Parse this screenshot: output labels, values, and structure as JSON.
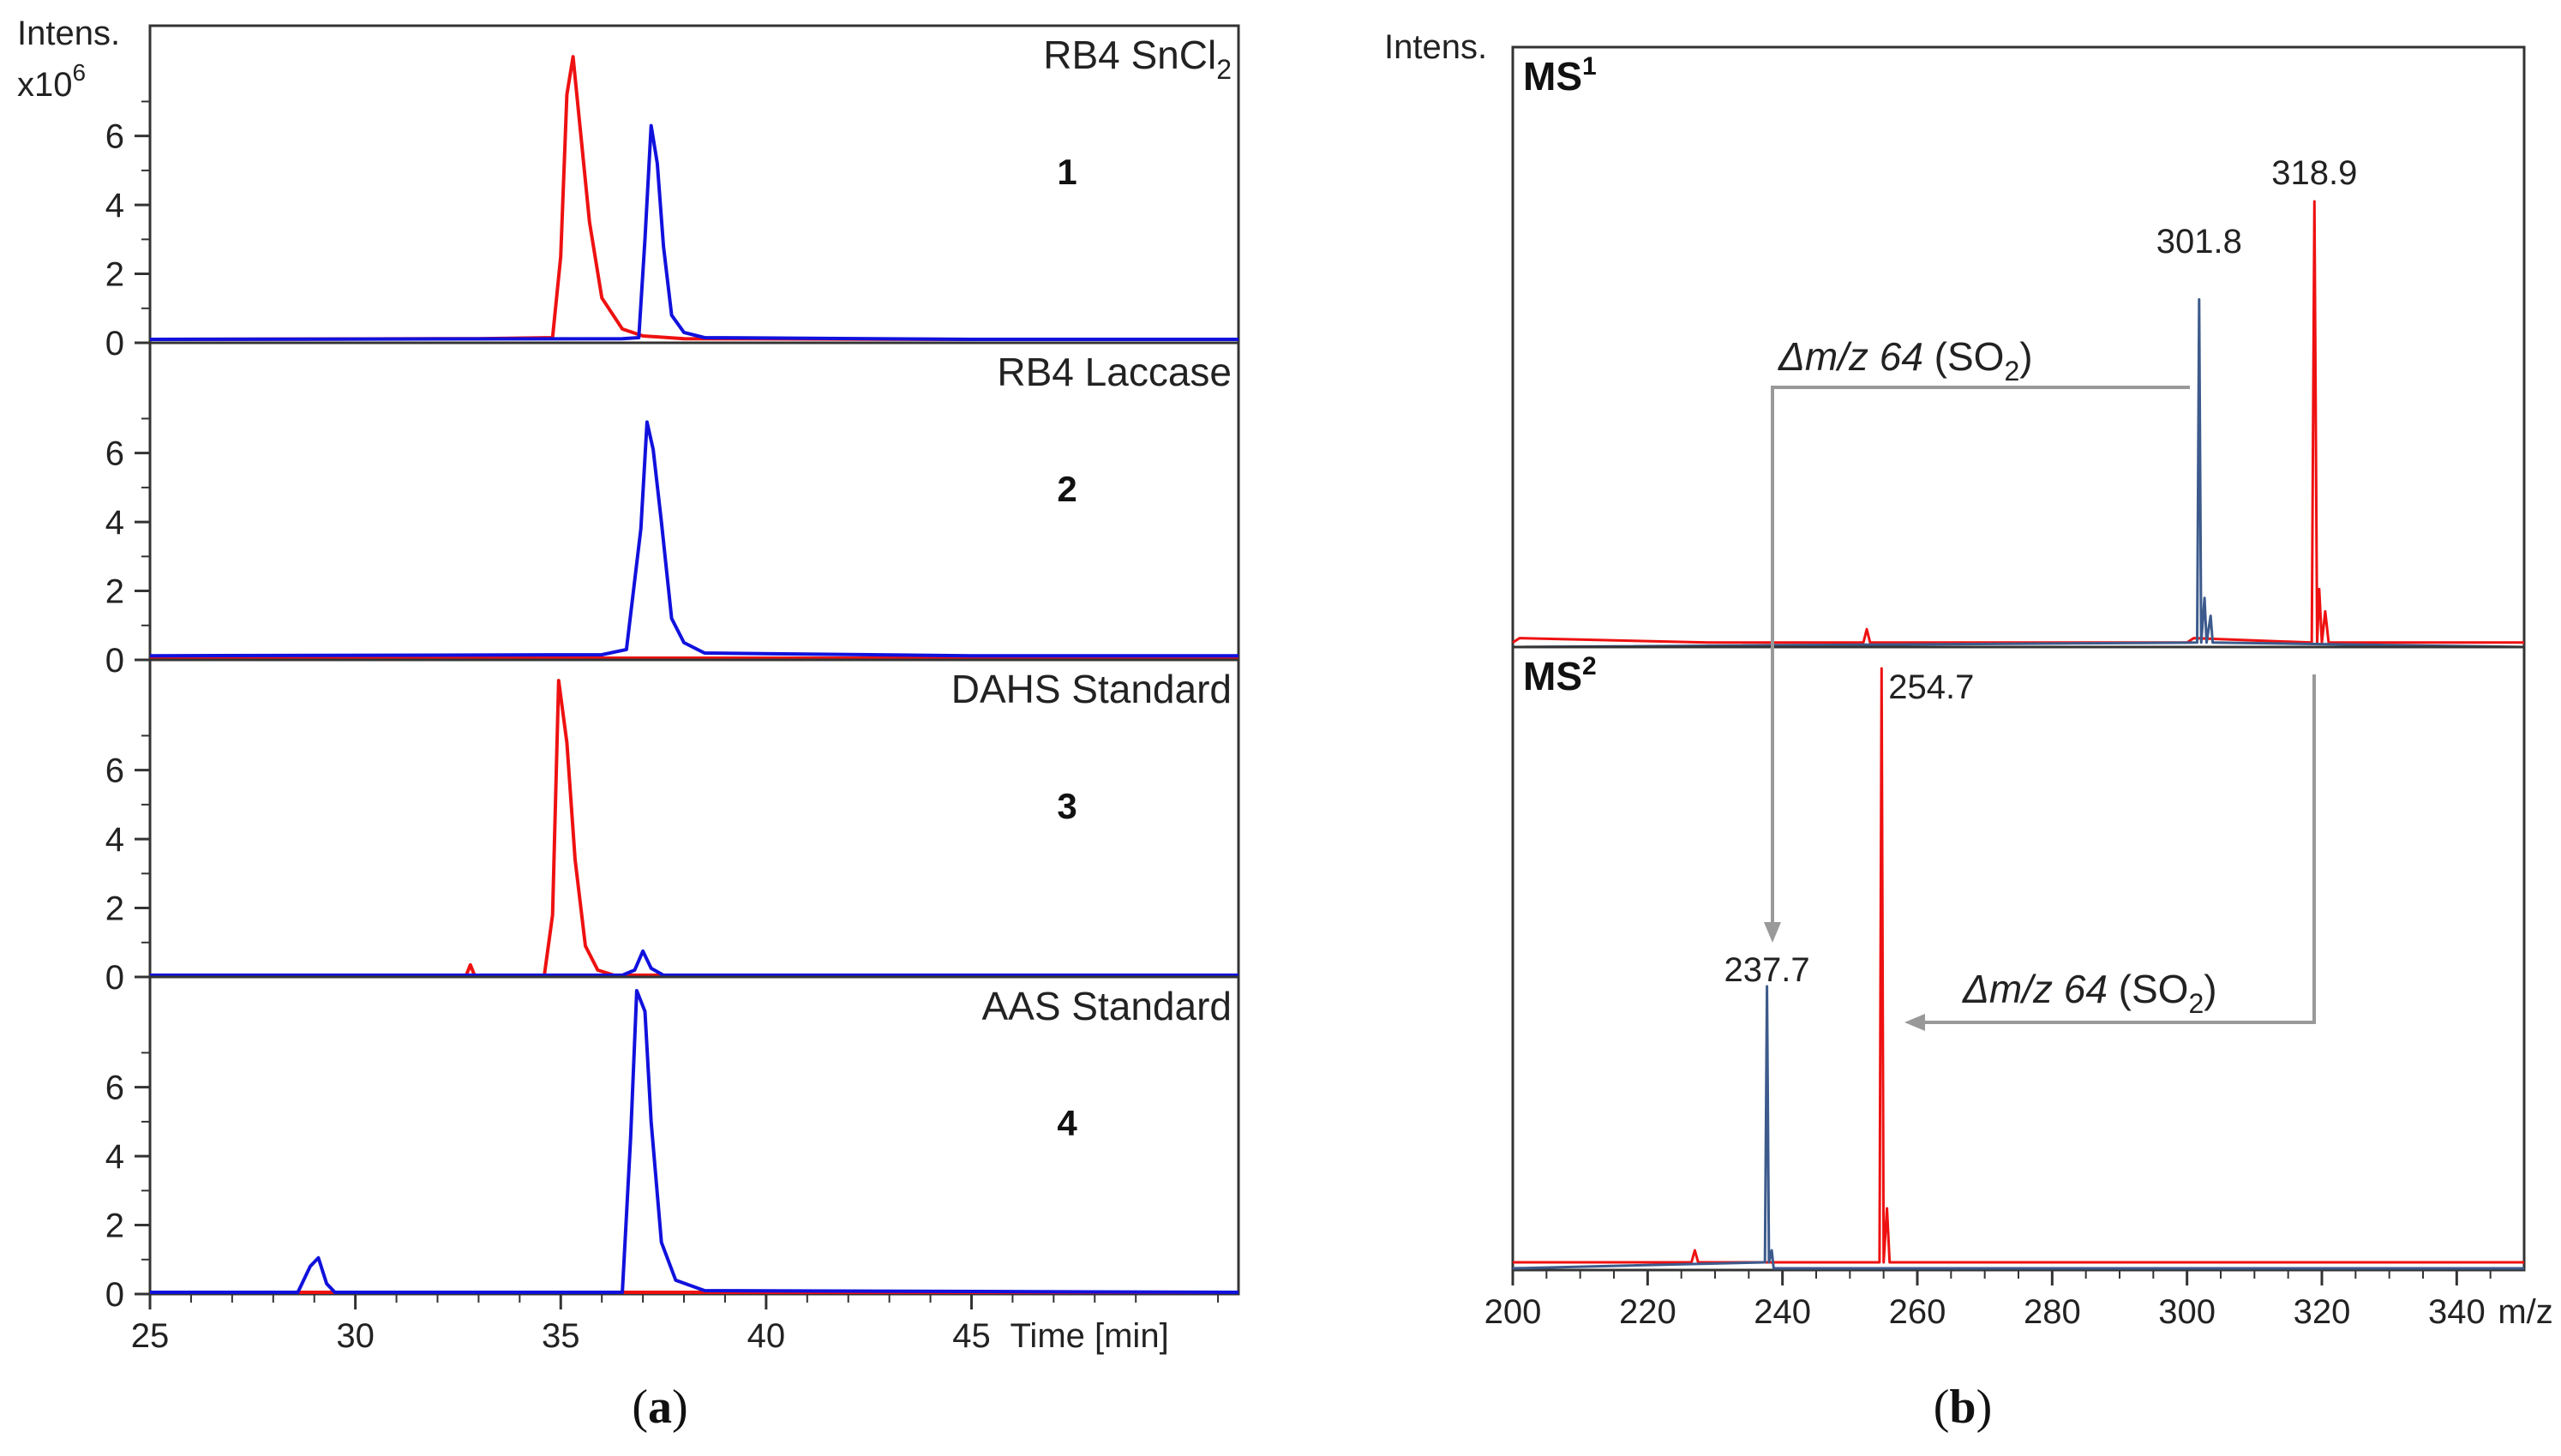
{
  "chart_data": [
    {
      "id": "a",
      "type": "line",
      "panel_caption": "a",
      "y_axis_label": "Intens.",
      "y_axis_multiplier_base": "x10",
      "y_axis_multiplier_exp": "6",
      "x_axis_label": "Time [min]",
      "xlim": [
        25,
        51.5
      ],
      "x_ticks": [
        25,
        30,
        35,
        40,
        45
      ],
      "ylim": [
        0,
        9
      ],
      "y_ticks": [
        0,
        2,
        4,
        6
      ],
      "series_colors": {
        "red": "#ee1111",
        "blue": "#1111dd"
      },
      "panels": [
        {
          "title_main": "RB4 SnCl",
          "title_sub": "2",
          "number": "1",
          "series": [
            {
              "name": "red",
              "points": [
                [
                  25,
                  0.1
                ],
                [
                  33,
                  0.12
                ],
                [
                  34.8,
                  0.15
                ],
                [
                  35,
                  2.5
                ],
                [
                  35.15,
                  7.2
                ],
                [
                  35.3,
                  8.3
                ],
                [
                  35.45,
                  6.5
                ],
                [
                  35.7,
                  3.5
                ],
                [
                  36,
                  1.3
                ],
                [
                  36.5,
                  0.4
                ],
                [
                  37,
                  0.2
                ],
                [
                  38,
                  0.12
                ],
                [
                  45,
                  0.1
                ],
                [
                  51.5,
                  0.1
                ]
              ]
            },
            {
              "name": "blue",
              "points": [
                [
                  25,
                  0.1
                ],
                [
                  36.5,
                  0.12
                ],
                [
                  36.9,
                  0.15
                ],
                [
                  37.05,
                  3
                ],
                [
                  37.2,
                  6.3
                ],
                [
                  37.35,
                  5.2
                ],
                [
                  37.5,
                  2.8
                ],
                [
                  37.7,
                  0.8
                ],
                [
                  38,
                  0.3
                ],
                [
                  38.5,
                  0.15
                ],
                [
                  45,
                  0.1
                ],
                [
                  51.5,
                  0.1
                ]
              ]
            }
          ]
        },
        {
          "title_main": "RB4 Laccase",
          "title_sub": "",
          "number": "2",
          "series": [
            {
              "name": "red",
              "points": [
                [
                  25,
                  0.05
                ],
                [
                  51.5,
                  0.05
                ]
              ]
            },
            {
              "name": "blue",
              "points": [
                [
                  25,
                  0.12
                ],
                [
                  36,
                  0.15
                ],
                [
                  36.6,
                  0.3
                ],
                [
                  36.95,
                  3.8
                ],
                [
                  37.1,
                  6.9
                ],
                [
                  37.25,
                  6.1
                ],
                [
                  37.45,
                  4
                ],
                [
                  37.7,
                  1.2
                ],
                [
                  38,
                  0.5
                ],
                [
                  38.5,
                  0.2
                ],
                [
                  45,
                  0.12
                ],
                [
                  51.5,
                  0.12
                ]
              ]
            }
          ]
        },
        {
          "title_main": "DAHS Standard",
          "title_sub": "",
          "number": "3",
          "series": [
            {
              "name": "red",
              "points": [
                [
                  25,
                  0.05
                ],
                [
                  32.7,
                  0.05
                ],
                [
                  32.8,
                  0.35
                ],
                [
                  32.9,
                  0.05
                ],
                [
                  34.6,
                  0.05
                ],
                [
                  34.8,
                  1.8
                ],
                [
                  34.95,
                  8.6
                ],
                [
                  35.15,
                  6.8
                ],
                [
                  35.35,
                  3.4
                ],
                [
                  35.6,
                  0.9
                ],
                [
                  35.9,
                  0.2
                ],
                [
                  36.3,
                  0.05
                ],
                [
                  51.5,
                  0.05
                ]
              ]
            },
            {
              "name": "blue",
              "points": [
                [
                  25,
                  0.05
                ],
                [
                  36.5,
                  0.05
                ],
                [
                  36.8,
                  0.2
                ],
                [
                  37,
                  0.75
                ],
                [
                  37.2,
                  0.25
                ],
                [
                  37.5,
                  0.05
                ],
                [
                  51.5,
                  0.05
                ]
              ]
            }
          ]
        },
        {
          "title_main": "AAS Standard",
          "title_sub": "",
          "number": "4",
          "series": [
            {
              "name": "red",
              "points": [
                [
                  25,
                  0.05
                ],
                [
                  51.5,
                  0.05
                ]
              ]
            },
            {
              "name": "blue",
              "points": [
                [
                  25,
                  0.05
                ],
                [
                  28.6,
                  0.05
                ],
                [
                  28.9,
                  0.8
                ],
                [
                  29.1,
                  1.05
                ],
                [
                  29.3,
                  0.3
                ],
                [
                  29.5,
                  0.05
                ],
                [
                  36.5,
                  0.05
                ],
                [
                  36.7,
                  4.5
                ],
                [
                  36.85,
                  8.8
                ],
                [
                  37.05,
                  8.2
                ],
                [
                  37.2,
                  5
                ],
                [
                  37.45,
                  1.5
                ],
                [
                  37.8,
                  0.4
                ],
                [
                  38.5,
                  0.1
                ],
                [
                  51.5,
                  0.05
                ]
              ]
            }
          ]
        }
      ]
    },
    {
      "id": "b",
      "type": "line",
      "panel_caption": "b",
      "y_axis_label": "Intens.",
      "x_axis_label": "m/z",
      "xlim": [
        200,
        350
      ],
      "x_ticks": [
        200,
        220,
        240,
        260,
        280,
        300,
        320,
        340
      ],
      "ylim": [
        0,
        1
      ],
      "series_colors": {
        "red": "#ee1111",
        "blue": "#3c5a8c",
        "arrow": "#999999"
      },
      "panels": [
        {
          "label_main": "MS",
          "label_sup": "1",
          "series": [
            {
              "name": "red",
              "points": [
                [
                  200,
                  0.01
                ],
                [
                  201,
                  0.02
                ],
                [
                  229,
                  0.01
                ],
                [
                  252,
                  0.01
                ],
                [
                  252.5,
                  0.04
                ],
                [
                  253,
                  0.01
                ],
                [
                  300,
                  0.01
                ],
                [
                  301,
                  0.02
                ],
                [
                  318.5,
                  0.01
                ],
                [
                  318.9,
                  1
                ],
                [
                  319.3,
                  0.01
                ],
                [
                  319.6,
                  0.13
                ],
                [
                  320,
                  0.01
                ],
                [
                  320.5,
                  0.08
                ],
                [
                  321,
                  0.01
                ],
                [
                  350,
                  0.01
                ]
              ]
            },
            {
              "name": "blue",
              "points": [
                [
                  200,
                  0
                ],
                [
                  301.5,
                  0.01
                ],
                [
                  301.8,
                  0.78
                ],
                [
                  302.1,
                  0.01
                ],
                [
                  302.6,
                  0.11
                ],
                [
                  302.9,
                  0.01
                ],
                [
                  303.5,
                  0.07
                ],
                [
                  303.8,
                  0.01
                ],
                [
                  350,
                  0
                ]
              ]
            }
          ],
          "peak_labels": [
            {
              "x": 301.8,
              "text": "301.8"
            },
            {
              "x": 318.9,
              "text": "318.9"
            }
          ]
        },
        {
          "label_main": "MS",
          "label_sup": "2",
          "series": [
            {
              "name": "red",
              "points": [
                [
                  200,
                  0.01
                ],
                [
                  226.5,
                  0.01
                ],
                [
                  227,
                  0.03
                ],
                [
                  227.5,
                  0.01
                ],
                [
                  254.4,
                  0.01
                ],
                [
                  254.7,
                  1
                ],
                [
                  255,
                  0.01
                ],
                [
                  255.5,
                  0.1
                ],
                [
                  255.9,
                  0.01
                ],
                [
                  350,
                  0.01
                ]
              ]
            },
            {
              "name": "blue",
              "points": [
                [
                  200,
                  0
                ],
                [
                  237.4,
                  0.01
                ],
                [
                  237.7,
                  0.47
                ],
                [
                  238,
                  0.01
                ],
                [
                  238.4,
                  0.03
                ],
                [
                  238.7,
                  0
                ],
                [
                  350,
                  0
                ]
              ]
            }
          ],
          "peak_labels": [
            {
              "x": 254.7,
              "text": "254.7"
            },
            {
              "x": 237.7,
              "text": "237.7"
            }
          ]
        }
      ],
      "annotations": [
        {
          "italic": "Δm/z 64",
          "text": " (SO",
          "sub": "2",
          "close": ")"
        },
        {
          "italic": "Δm/z 64",
          "text": " (SO",
          "sub": "2",
          "close": ")"
        }
      ]
    }
  ]
}
